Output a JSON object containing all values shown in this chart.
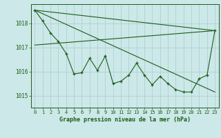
{
  "title": "Graphe pression niveau de la mer (hPa)",
  "yticks": [
    1015,
    1016,
    1017,
    1018
  ],
  "ylim": [
    1014.5,
    1018.8
  ],
  "xlim": [
    -0.5,
    23.5
  ],
  "bg_color": "#cce8e8",
  "grid_color": "#aacccc",
  "line_color": "#1a5c1a",
  "text_color": "#1a5c1a",
  "main_data": [
    1018.55,
    1018.1,
    1017.6,
    1017.25,
    1016.75,
    1015.9,
    1015.95,
    1016.55,
    1016.05,
    1016.65,
    1015.5,
    1015.6,
    1015.85,
    1016.35,
    1015.85,
    1015.45,
    1015.8,
    1015.5,
    1015.25,
    1015.15,
    1015.15,
    1015.7,
    1015.85,
    1017.7
  ],
  "trend1_x": [
    0,
    23
  ],
  "trend1_y": [
    1018.55,
    1017.7
  ],
  "trend2_x": [
    0,
    23
  ],
  "trend2_y": [
    1018.55,
    1015.15
  ],
  "trend3_x": [
    0,
    23
  ],
  "trend3_y": [
    1017.1,
    1017.7
  ],
  "figsize": [
    3.2,
    2.0
  ],
  "dpi": 100
}
